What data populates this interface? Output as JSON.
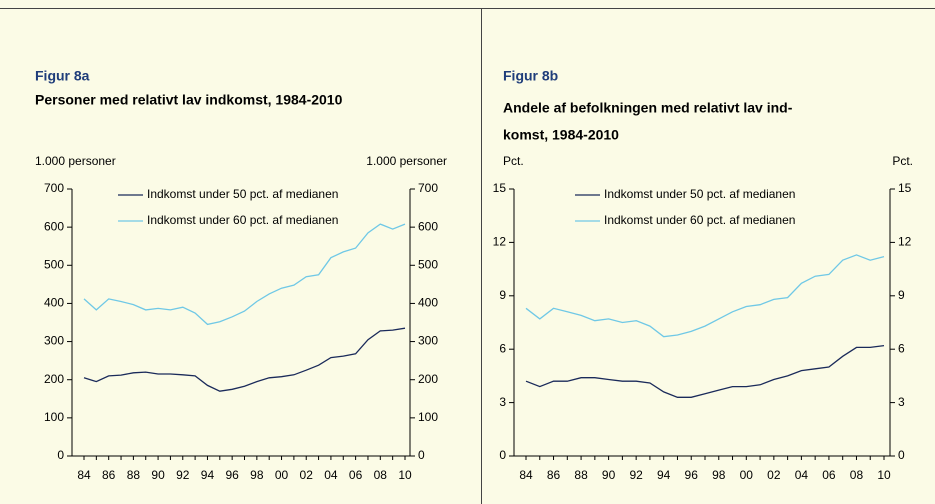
{
  "chart_data": [
    {
      "type": "line",
      "title": "Figur 8a",
      "subtitle": [
        "Personer med relativt lav indkomst, 1984-2010"
      ],
      "ylabel": "1.000 personer",
      "y2label": "1.000 personer",
      "categories": [
        "84",
        null,
        "86",
        null,
        "88",
        null,
        "90",
        null,
        "92",
        null,
        "94",
        null,
        "96",
        null,
        "98",
        null,
        "00",
        null,
        "02",
        null,
        "04",
        null,
        "06",
        null,
        "08",
        null,
        "10"
      ],
      "ylim": [
        0,
        700
      ],
      "yticks": [
        0,
        100,
        200,
        300,
        400,
        500,
        600,
        700
      ],
      "series": [
        {
          "name": "Indkomst under 50 pct. af medianen",
          "color": "#1a2a5a",
          "values": [
            205,
            195,
            210,
            212,
            218,
            220,
            215,
            215,
            213,
            210,
            185,
            170,
            175,
            183,
            195,
            205,
            208,
            213,
            225,
            238,
            258,
            262,
            268,
            305,
            328,
            330,
            335
          ]
        },
        {
          "name": "Indkomst under 60 pct. af medianen",
          "color": "#6fc8e6",
          "values": [
            412,
            383,
            412,
            405,
            397,
            383,
            387,
            383,
            390,
            375,
            345,
            352,
            365,
            380,
            405,
            425,
            440,
            448,
            470,
            475,
            520,
            535,
            545,
            585,
            608,
            595,
            608
          ]
        }
      ]
    },
    {
      "type": "line",
      "title": "Figur 8b",
      "subtitle": [
        "Andele af befolkningen med relativt lav ind-",
        "komst, 1984-2010"
      ],
      "ylabel": "Pct.",
      "y2label": "Pct.",
      "categories": [
        "84",
        null,
        "86",
        null,
        "88",
        null,
        "90",
        null,
        "92",
        null,
        "94",
        null,
        "96",
        null,
        "98",
        null,
        "00",
        null,
        "02",
        null,
        "04",
        null,
        "06",
        null,
        "08",
        null,
        "10"
      ],
      "ylim": [
        0,
        15
      ],
      "yticks": [
        0,
        3,
        6,
        9,
        12,
        15
      ],
      "series": [
        {
          "name": "Indkomst under 50 pct. af medianen",
          "color": "#1a2a5a",
          "values": [
            4.2,
            3.9,
            4.2,
            4.2,
            4.4,
            4.4,
            4.3,
            4.2,
            4.2,
            4.1,
            3.6,
            3.3,
            3.3,
            3.5,
            3.7,
            3.9,
            3.9,
            4.0,
            4.3,
            4.5,
            4.8,
            4.9,
            5.0,
            5.6,
            6.1,
            6.1,
            6.2
          ]
        },
        {
          "name": "Indkomst under 60 pct. af medianen",
          "color": "#6fc8e6",
          "values": [
            8.3,
            7.7,
            8.3,
            8.1,
            7.9,
            7.6,
            7.7,
            7.5,
            7.6,
            7.3,
            6.7,
            6.8,
            7.0,
            7.3,
            7.7,
            8.1,
            8.4,
            8.5,
            8.8,
            8.9,
            9.7,
            10.1,
            10.2,
            11.0,
            11.3,
            11.0,
            11.2
          ]
        }
      ]
    }
  ]
}
